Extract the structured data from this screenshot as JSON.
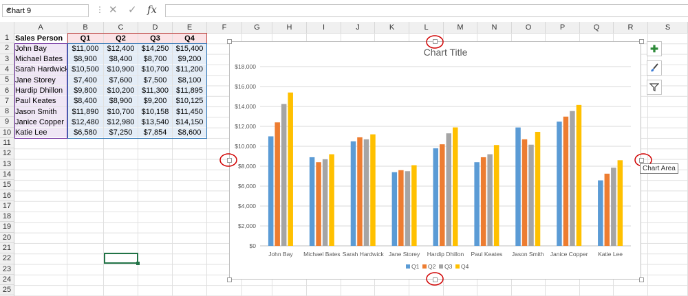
{
  "formula_bar": {
    "name_box": "Chart 9",
    "formula": "",
    "cancel_glyph": "✕",
    "enter_glyph": "✓",
    "fx_glyph": "fx"
  },
  "columns": [
    "A",
    "B",
    "C",
    "D",
    "E",
    "F",
    "G",
    "H",
    "I",
    "J",
    "K",
    "L",
    "M",
    "N",
    "O",
    "P",
    "Q",
    "R",
    "S"
  ],
  "rows": [
    "1",
    "2",
    "3",
    "4",
    "5",
    "6",
    "7",
    "8",
    "9",
    "10",
    "11",
    "12",
    "13",
    "14",
    "15",
    "16",
    "17",
    "18",
    "19",
    "20",
    "21",
    "22",
    "23",
    "24",
    "25"
  ],
  "table": {
    "headers": [
      "Sales Person",
      "Q1",
      "Q2",
      "Q3",
      "Q4"
    ],
    "rows": [
      [
        "John Bay",
        "$11,000",
        "$12,400",
        "$14,250",
        "$15,400"
      ],
      [
        "Michael Bates",
        "$8,900",
        "$8,400",
        "$8,700",
        "$9,200"
      ],
      [
        "Sarah Hardwick",
        "$10,500",
        "$10,900",
        "$10,700",
        "$11,200"
      ],
      [
        "Jane Storey",
        "$7,400",
        "$7,600",
        "$7,500",
        "$8,100"
      ],
      [
        "Hardip Dhillon",
        "$9,800",
        "$10,200",
        "$11,300",
        "$11,895"
      ],
      [
        "Paul Keates",
        "$8,400",
        "$8,900",
        "$9,200",
        "$10,125"
      ],
      [
        "Jason Smith",
        "$11,890",
        "$10,700",
        "$10,158",
        "$11,450"
      ],
      [
        "Janice Copper",
        "$12,480",
        "$12,980",
        "$13,540",
        "$14,150"
      ],
      [
        "Katie Lee",
        "$6,580",
        "$7,250",
        "$7,854",
        "$8,600"
      ]
    ]
  },
  "tooltip": "Chart Area",
  "colors": {
    "Q1": "#5b9bd5",
    "Q2": "#ed7d31",
    "Q3": "#a5a5a5",
    "Q4": "#ffc000",
    "annotation": "#d00000",
    "selected_cell": "#217346"
  },
  "side_buttons": [
    {
      "name": "chart-elements-button",
      "icon": "plus-icon"
    },
    {
      "name": "chart-styles-button",
      "icon": "brush-icon"
    },
    {
      "name": "chart-filters-button",
      "icon": "filter-icon"
    }
  ],
  "chart_data": {
    "type": "bar",
    "title": "Chart Title",
    "categories": [
      "John Bay",
      "Michael Bates",
      "Sarah Hardwick",
      "Jane Storey",
      "Hardip Dhillon",
      "Paul Keates",
      "Jason Smith",
      "Janice Copper",
      "Katie Lee"
    ],
    "series": [
      {
        "name": "Q1",
        "values": [
          11000,
          8900,
          10500,
          7400,
          9800,
          8400,
          11890,
          12480,
          6580
        ]
      },
      {
        "name": "Q2",
        "values": [
          12400,
          8400,
          10900,
          7600,
          10200,
          8900,
          10700,
          12980,
          7250
        ]
      },
      {
        "name": "Q3",
        "values": [
          14250,
          8700,
          10700,
          7500,
          11300,
          9200,
          10158,
          13540,
          7854
        ]
      },
      {
        "name": "Q4",
        "values": [
          15400,
          9200,
          11200,
          8100,
          11895,
          10125,
          11450,
          14150,
          8600
        ]
      }
    ],
    "yticks": [
      "$0",
      "$2,000",
      "$4,000",
      "$6,000",
      "$8,000",
      "$10,000",
      "$12,000",
      "$14,000",
      "$16,000",
      "$18,000"
    ],
    "ylim": [
      0,
      18000
    ],
    "grid": true,
    "legend": "bottom"
  }
}
